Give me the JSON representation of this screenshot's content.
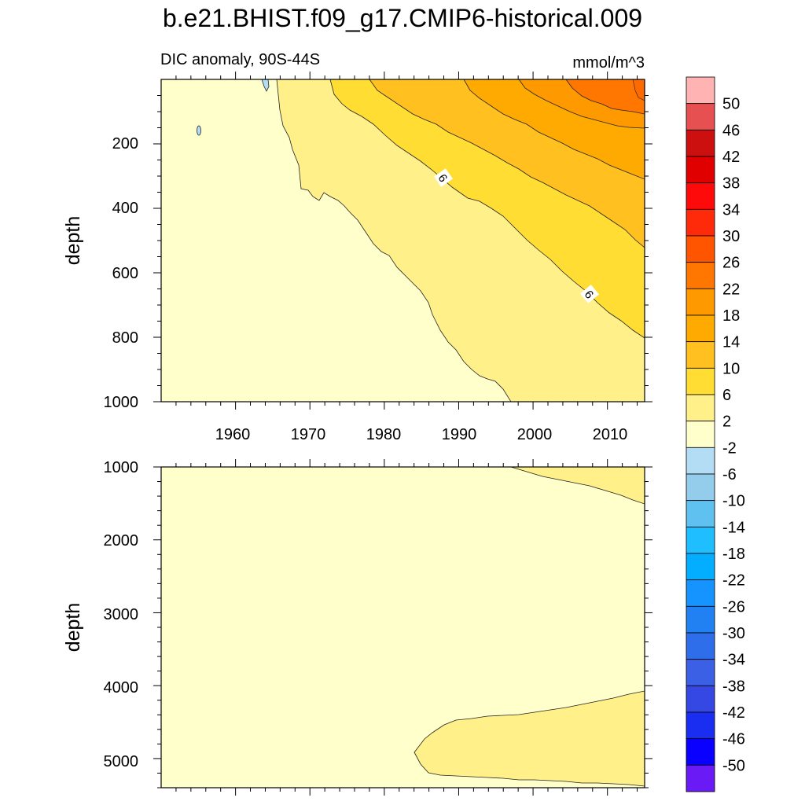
{
  "title": "b.e21.BHIST.f09_g17.CMIP6-historical.009",
  "subtitle_left": "DIC anomaly, 90S-44S",
  "subtitle_right": "mmol/m^3",
  "chart_data": [
    {
      "type": "heatmap",
      "panel": "upper",
      "ylabel": "depth",
      "xlabel": "",
      "x_ticks": [
        "1960",
        "1970",
        "1980",
        "1990",
        "2000",
        "2010"
      ],
      "y_ticks": [
        "200",
        "400",
        "600",
        "800",
        "1000"
      ],
      "xlim": [
        1950,
        2015
      ],
      "ylim": [
        0,
        1000
      ],
      "y_inverted": true,
      "contour_labels": [
        "6",
        "6"
      ],
      "contour_levels_mmol": [
        2,
        6,
        10,
        14,
        18,
        22
      ]
    },
    {
      "type": "heatmap",
      "panel": "lower",
      "ylabel": "depth",
      "xlabel": "",
      "x_ticks": [
        "1960",
        "1970",
        "1980",
        "1990",
        "2000",
        "2010"
      ],
      "y_ticks": [
        "1000",
        "2000",
        "3000",
        "4000",
        "5000"
      ],
      "xlim": [
        1950,
        2015
      ],
      "ylim": [
        1000,
        5400
      ],
      "y_inverted": true,
      "contour_levels_mmol": [
        2
      ]
    }
  ],
  "colorbar": {
    "labels": [
      "50",
      "46",
      "42",
      "38",
      "34",
      "30",
      "26",
      "22",
      "18",
      "14",
      "10",
      "6",
      "2",
      "-2",
      "-6",
      "-10",
      "-14",
      "-18",
      "-22",
      "-26",
      "-30",
      "-34",
      "-38",
      "-42",
      "-46",
      "-50"
    ],
    "colors": [
      "#FFB3B3",
      "#E65050",
      "#CC1010",
      "#E00000",
      "#FF0A0A",
      "#FF2A0A",
      "#FF5500",
      "#FF7700",
      "#FF9900",
      "#FFAA00",
      "#FFC020",
      "#FFDD33",
      "#FFF08A",
      "#FFFFCC",
      "#B2DDF4",
      "#94CCEC",
      "#5FC1EF",
      "#1FBFFF",
      "#03ADFF",
      "#1593FF",
      "#2181F2",
      "#2F6EEB",
      "#3B5FE5",
      "#3648E3",
      "#1A2EF2",
      "#0A00FF",
      "#6A1AF5"
    ]
  },
  "colors": {
    "pale_yellow": "#FFFFCC",
    "light_yellow": "#FFF08A",
    "yellow": "#FFDD33",
    "gold": "#FFC020",
    "amber": "#FFAA00",
    "orange": "#FF9900",
    "dark_orange": "#FF7700",
    "light_blue": "#B2DDF4"
  }
}
